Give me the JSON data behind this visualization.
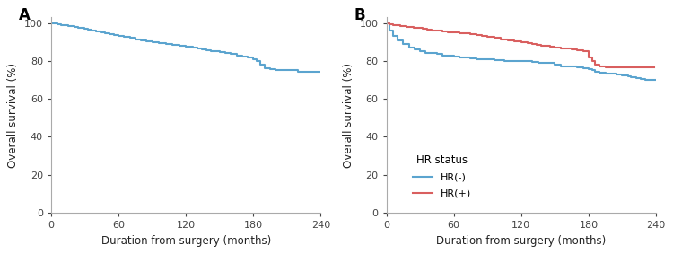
{
  "panel_A_label": "A",
  "panel_B_label": "B",
  "xlabel": "Duration from surgery (months)",
  "ylabel": "Overall survival (%)",
  "xlim": [
    0,
    240
  ],
  "ylim": [
    0,
    103
  ],
  "xticks": [
    0,
    60,
    120,
    180,
    240
  ],
  "yticks": [
    0,
    20,
    40,
    60,
    80,
    100
  ],
  "blue_color": "#5BA4CF",
  "red_color": "#D95F5F",
  "legend_title": "HR status",
  "legend_hr_neg": "HR(-)",
  "legend_hr_pos": "HR(+)",
  "panel_A_x": [
    0,
    3,
    6,
    9,
    12,
    15,
    18,
    21,
    24,
    27,
    30,
    33,
    36,
    40,
    44,
    48,
    52,
    56,
    60,
    65,
    70,
    75,
    80,
    85,
    90,
    96,
    102,
    108,
    114,
    120,
    126,
    130,
    134,
    138,
    142,
    146,
    150,
    155,
    160,
    165,
    170,
    175,
    180,
    183,
    186,
    190,
    195,
    200,
    205,
    210,
    215,
    220,
    225,
    230,
    235,
    240
  ],
  "panel_A_y": [
    100,
    100,
    99.5,
    99,
    98.8,
    98.5,
    98.2,
    97.8,
    97.5,
    97.2,
    97,
    96.5,
    96,
    95.5,
    95,
    94.5,
    94,
    93.5,
    93,
    92.5,
    92,
    91.5,
    91,
    90.5,
    90,
    89.5,
    89,
    88.5,
    88,
    87.5,
    87,
    86.5,
    86,
    85.5,
    85.2,
    85,
    84.5,
    84,
    83.5,
    83,
    82.5,
    82,
    81,
    80,
    78,
    76,
    75.5,
    75.3,
    75,
    75,
    75,
    74.5,
    74.5,
    74.5,
    74.5,
    74.5
  ],
  "panel_B_blue_x": [
    0,
    3,
    6,
    10,
    15,
    20,
    25,
    30,
    35,
    40,
    45,
    50,
    55,
    60,
    65,
    70,
    75,
    80,
    85,
    90,
    96,
    100,
    105,
    110,
    115,
    120,
    125,
    130,
    135,
    140,
    145,
    150,
    155,
    160,
    165,
    170,
    175,
    180,
    183,
    186,
    190,
    195,
    200,
    205,
    210,
    215,
    218,
    222,
    226,
    230,
    235,
    240
  ],
  "panel_B_blue_y": [
    100,
    96,
    93,
    91,
    89,
    87,
    86,
    85,
    84,
    84,
    83.5,
    83,
    83,
    82.5,
    82,
    82,
    81.5,
    81,
    81,
    81,
    80.5,
    80.5,
    80,
    80,
    80,
    80,
    80,
    79.5,
    79,
    79,
    79,
    78,
    77,
    77,
    77,
    76.5,
    76,
    75.5,
    75,
    74.5,
    74,
    73.5,
    73.5,
    73,
    72.5,
    72,
    71.5,
    71,
    70.5,
    70,
    70,
    70
  ],
  "panel_B_red_x": [
    0,
    3,
    6,
    9,
    12,
    15,
    18,
    21,
    24,
    28,
    32,
    36,
    40,
    45,
    50,
    55,
    60,
    65,
    70,
    75,
    80,
    85,
    90,
    96,
    102,
    108,
    114,
    120,
    126,
    130,
    134,
    138,
    142,
    146,
    150,
    155,
    160,
    165,
    170,
    175,
    180,
    183,
    186,
    190,
    195,
    200,
    210,
    220,
    230,
    238
  ],
  "panel_B_red_y": [
    100,
    99.5,
    99,
    98.8,
    98.5,
    98.2,
    98,
    97.8,
    97.5,
    97.2,
    97,
    96.5,
    96.2,
    96,
    95.5,
    95.2,
    95,
    94.8,
    94.5,
    94,
    93.5,
    93,
    92.5,
    92,
    91.5,
    91,
    90.5,
    90,
    89.5,
    89,
    88.5,
    88,
    87.8,
    87.5,
    87,
    86.5,
    86.5,
    86,
    85.5,
    85,
    82,
    80,
    78,
    77,
    76.5,
    76.5,
    76.5,
    76.5,
    76.5,
    76.5
  ]
}
